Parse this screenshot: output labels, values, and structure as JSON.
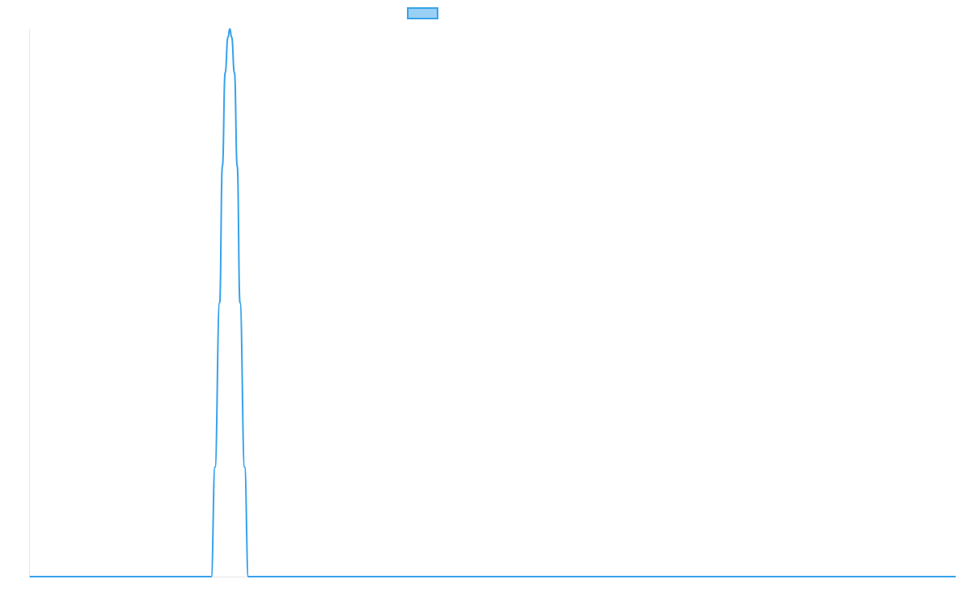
{
  "chart_data": {
    "type": "line",
    "series": [
      {
        "name": "",
        "color": "#36a2eb",
        "fill_color": "#9ad0f5",
        "points": [
          [
            0,
            0
          ],
          [
            0.196,
            0
          ],
          [
            0.2,
            0.2
          ],
          [
            0.205,
            0.5
          ],
          [
            0.208,
            0.75
          ],
          [
            0.211,
            0.92
          ],
          [
            0.214,
            0.985
          ],
          [
            0.216,
            1.0
          ],
          [
            0.218,
            0.985
          ],
          [
            0.221,
            0.92
          ],
          [
            0.224,
            0.75
          ],
          [
            0.227,
            0.5
          ],
          [
            0.232,
            0.2
          ],
          [
            0.236,
            0
          ],
          [
            1,
            0
          ]
        ]
      }
    ],
    "xlim": [
      0,
      1
    ],
    "ylim": [
      0,
      1
    ],
    "grid": false,
    "legend_position": "top"
  }
}
